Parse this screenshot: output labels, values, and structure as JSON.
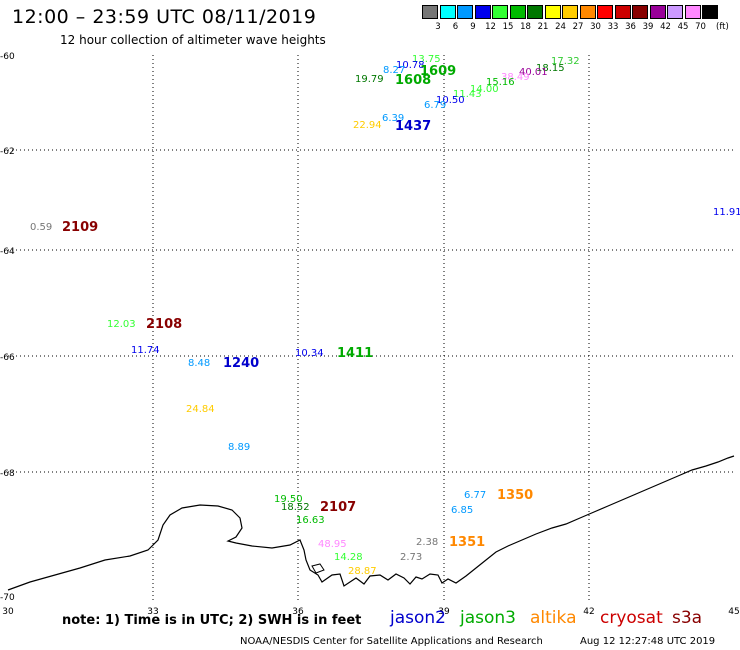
{
  "header": {
    "title": "12:00 – 23:59 UTC 08/11/2019",
    "subtitle": "12 hour collection of altimeter wave heights"
  },
  "colorbar": {
    "unit": "(ft)",
    "bins": [
      {
        "label": "3",
        "color": "#777777"
      },
      {
        "label": "6",
        "color": "#00ffff"
      },
      {
        "label": "9",
        "color": "#0099ff"
      },
      {
        "label": "12",
        "color": "#0000ee"
      },
      {
        "label": "15",
        "color": "#33ff33"
      },
      {
        "label": "18",
        "color": "#00bb00"
      },
      {
        "label": "21",
        "color": "#007700"
      },
      {
        "label": "24",
        "color": "#ffff00"
      },
      {
        "label": "27",
        "color": "#ffcc00"
      },
      {
        "label": "30",
        "color": "#ff8800"
      },
      {
        "label": "33",
        "color": "#ff0000"
      },
      {
        "label": "36",
        "color": "#cc0000"
      },
      {
        "label": "39",
        "color": "#880000"
      },
      {
        "label": "42",
        "color": "#990099"
      },
      {
        "label": "45",
        "color": "#cc99ff"
      },
      {
        "label": "70",
        "color": "#ff88ff"
      },
      {
        "label": "",
        "color": "#000000"
      }
    ]
  },
  "axes": {
    "lat_labels": [
      "-60",
      "-62",
      "-64",
      "-66",
      "-68",
      "-70"
    ],
    "lon_labels": [
      "30",
      "33",
      "36",
      "39",
      "42",
      "45"
    ]
  },
  "observations": [
    {
      "text": "13.75",
      "color": "#33ff33"
    },
    {
      "text": "17.32",
      "color": "#33cc33"
    },
    {
      "text": "10.78",
      "color": "#0000ee"
    },
    {
      "text": "8.27",
      "color": "#0099ff"
    },
    {
      "text": "19.79",
      "color": "#007700"
    },
    {
      "text": "18.15",
      "color": "#007700"
    },
    {
      "text": "40.01",
      "color": "#990099"
    },
    {
      "text": "38.49",
      "color": "#ff88ff"
    },
    {
      "text": "15.16",
      "color": "#00bb00"
    },
    {
      "text": "14.00",
      "color": "#33ff33"
    },
    {
      "text": "11.43",
      "color": "#33ff33"
    },
    {
      "text": "10.50",
      "color": "#0000ee"
    },
    {
      "text": "6.79",
      "color": "#0099ff"
    },
    {
      "text": "6.39",
      "color": "#0099ff"
    },
    {
      "text": "22.94",
      "color": "#ffcc00"
    },
    {
      "text": "11.91",
      "color": "#0000ee"
    },
    {
      "text": "0.59",
      "color": "#777777"
    },
    {
      "text": "12.03",
      "color": "#33ff33"
    },
    {
      "text": "11.74",
      "color": "#0000ee"
    },
    {
      "text": "8.48",
      "color": "#0099ff"
    },
    {
      "text": "10.34",
      "color": "#0000ee"
    },
    {
      "text": "24.84",
      "color": "#ffcc00"
    },
    {
      "text": "8.89",
      "color": "#0099ff"
    },
    {
      "text": "19.50",
      "color": "#00bb00"
    },
    {
      "text": "18.52",
      "color": "#007700"
    },
    {
      "text": "16.63",
      "color": "#00bb00"
    },
    {
      "text": "6.77",
      "color": "#0099ff"
    },
    {
      "text": "6.85",
      "color": "#0099ff"
    },
    {
      "text": "2.38",
      "color": "#777777"
    },
    {
      "text": "2.73",
      "color": "#777777"
    },
    {
      "text": "48.95",
      "color": "#ff88ff"
    },
    {
      "text": "14.28",
      "color": "#33ff33"
    },
    {
      "text": "28.87",
      "color": "#ffcc00"
    }
  ],
  "pass_times": [
    {
      "text": "1609",
      "color": "#00aa00"
    },
    {
      "text": "1608",
      "color": "#00aa00"
    },
    {
      "text": "1437",
      "color": "#0000cc"
    },
    {
      "text": "2109",
      "color": "#880000"
    },
    {
      "text": "2108",
      "color": "#880000"
    },
    {
      "text": "1240",
      "color": "#0000cc"
    },
    {
      "text": "1411",
      "color": "#00aa00"
    },
    {
      "text": "2107",
      "color": "#880000"
    },
    {
      "text": "1350",
      "color": "#ff8800"
    },
    {
      "text": "1351",
      "color": "#ff8800"
    }
  ],
  "notes": {
    "text": "note:  1) Time is in UTC;  2) SWH is in feet"
  },
  "legend": [
    {
      "label": "jason2",
      "color": "#0000cc"
    },
    {
      "label": "jason3",
      "color": "#00aa00"
    },
    {
      "label": "altika",
      "color": "#ff8800"
    },
    {
      "label": "cryosat",
      "color": "#cc0000"
    },
    {
      "label": "s3a",
      "color": "#880000"
    }
  ],
  "footer": {
    "credit": "NOAA/NESDIS Center for Satellite Applications and Research",
    "timestamp": "Aug 12 12:27:48 UTC 2019"
  }
}
